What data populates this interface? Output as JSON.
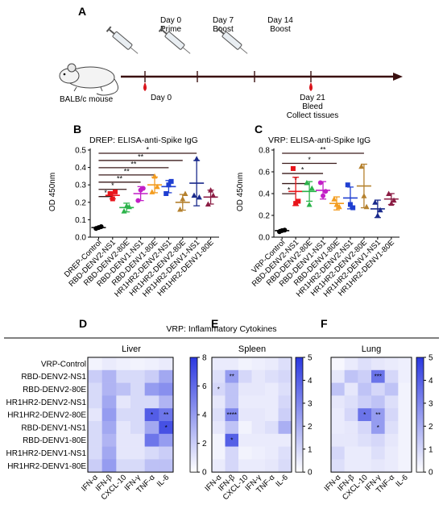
{
  "panel_a": {
    "letter": "A",
    "mouse_label": "BALB/c mouse",
    "events": [
      {
        "key": "d0",
        "top": [
          "Day 0",
          "Prime"
        ],
        "bottom": [
          "Day 0"
        ],
        "syringe": true,
        "blood": true
      },
      {
        "key": "d7",
        "top": [
          "Day 7",
          "Boost"
        ],
        "bottom": [],
        "syringe": true,
        "blood": false
      },
      {
        "key": "d14",
        "top": [
          "Day 14",
          "Boost"
        ],
        "bottom": [],
        "syringe": true,
        "blood": false
      },
      {
        "key": "d21",
        "top": [],
        "bottom": [
          "Day 21",
          "Bleed",
          "Collect tissues"
        ],
        "syringe": false,
        "blood": true
      }
    ]
  },
  "panel_b": {
    "letter": "B",
    "chart_data": {
      "type": "scatter",
      "title": "DREP: ELISA-anti-Spike IgG",
      "ylabel": "OD 450nm",
      "ylim": [
        0,
        0.5
      ],
      "yticks": [
        "0.0",
        "0.1",
        "0.2",
        "0.3",
        "0.4",
        "0.5"
      ],
      "categories": [
        "DREP-Control",
        "RBD-DENV2-NS1",
        "RBD-DENV2-80E",
        "RBD-DENV1-NS1",
        "RBD-DENV1-80E",
        "HR1HR2-DENV2-NS1",
        "HR1HR2-DENV2-80E",
        "HR1HR2-DENV1-NS1",
        "HR1HR2-DENV1-80E"
      ],
      "colors": [
        "#000000",
        "#e8151b",
        "#2bb34a",
        "#c21fc7",
        "#f39c1f",
        "#1f3fd1",
        "#b5812e",
        "#1a2a8c",
        "#8b1d44"
      ],
      "means": [
        0.055,
        0.24,
        0.17,
        0.25,
        0.3,
        0.29,
        0.2,
        0.31,
        0.23
      ],
      "sds": [
        0.005,
        0.02,
        0.025,
        0.04,
        0.045,
        0.035,
        0.045,
        0.13,
        0.04
      ],
      "points": [
        [
          0.05,
          0.055,
          0.06
        ],
        [
          0.25,
          0.22,
          0.26
        ],
        [
          0.15,
          0.18,
          0.175
        ],
        [
          0.21,
          0.27,
          0.28
        ],
        [
          0.26,
          0.35,
          0.29
        ],
        [
          0.25,
          0.3,
          0.32
        ],
        [
          0.16,
          0.22,
          0.25
        ],
        [
          0.24,
          0.45,
          0.23
        ],
        [
          0.19,
          0.27,
          0.24
        ]
      ],
      "brackets": [
        {
          "to": 1,
          "label": "*"
        },
        {
          "to": 2,
          "label": "*"
        },
        {
          "to": 3,
          "label": "**"
        },
        {
          "to": 4,
          "label": "**"
        },
        {
          "to": 5,
          "label": "**"
        },
        {
          "to": 6,
          "label": "**"
        },
        {
          "to": 7,
          "label": "*"
        }
      ]
    }
  },
  "panel_c": {
    "letter": "C",
    "chart_data": {
      "type": "scatter",
      "title": "VRP: ELISA-anti-Spike IgG",
      "ylabel": "OD 450nm",
      "ylim": [
        0,
        0.8
      ],
      "yticks": [
        "0.0",
        "0.2",
        "0.4",
        "0.6",
        "0.8"
      ],
      "categories": [
        "VRP-Control",
        "RBD-DENV2-NS1",
        "RBD-DENV2-80E",
        "RBD-DENV1-NS1",
        "RBD-DENV1-80E",
        "HR1HR2-DENV2-NS1",
        "HR1HR2-DENV2-80E",
        "HR1HR2-DENV1-NS1",
        "HR1HR2-DENV1-80E"
      ],
      "colors": [
        "#000000",
        "#e8151b",
        "#2bb34a",
        "#c21fc7",
        "#f39c1f",
        "#1f3fd1",
        "#b5812e",
        "#1a2a8c",
        "#8b1d44"
      ],
      "means": [
        0.06,
        0.42,
        0.42,
        0.43,
        0.31,
        0.36,
        0.47,
        0.26,
        0.35
      ],
      "sds": [
        0.01,
        0.13,
        0.09,
        0.08,
        0.06,
        0.1,
        0.2,
        0.08,
        0.05
      ],
      "points": [
        [
          0.05,
          0.06,
          0.065
        ],
        [
          0.63,
          0.31,
          0.33
        ],
        [
          0.5,
          0.3,
          0.45
        ],
        [
          0.5,
          0.38,
          0.42
        ],
        [
          0.35,
          0.3,
          0.28
        ],
        [
          0.48,
          0.3,
          0.27
        ],
        [
          0.65,
          0.38,
          0.28
        ],
        [
          0.32,
          0.2,
          0.25
        ],
        [
          0.4,
          0.31,
          0.34
        ]
      ],
      "brackets": [
        {
          "to": 1,
          "label": "*"
        },
        {
          "to": 2,
          "label": "*"
        },
        {
          "to": 3,
          "label": "*"
        },
        {
          "to": 4,
          "label": "*"
        },
        {
          "to": 6,
          "label": "**"
        }
      ]
    }
  },
  "cytokines": {
    "header": "VRP: Inflammatory Cytokines",
    "row_labels": [
      "VRP-Control",
      "RBD-DENV2-NS1",
      "RBD-DENV2-80E",
      "HR1HR2-DENV2-NS1",
      "HR1HR2-DENV2-80E",
      "RBD-DENV1-NS1",
      "RBD-DENV1-80E",
      "HR1HR2-DENV1-NS1",
      "HR1HR2-DENV1-80E"
    ],
    "col_labels": [
      "IFN-α",
      "IFN-β",
      "CXCL-10",
      "IFN-γ",
      "TNF-α",
      "IL-6"
    ],
    "colormap": [
      "#ffffff",
      "#2b38e0"
    ],
    "panels": [
      {
        "letter": "D",
        "title": "Liver",
        "max": 8,
        "ticks": [
          "0",
          "2",
          "4",
          "6",
          "8"
        ],
        "chart_data": {
          "type": "heatmap",
          "values": [
            [
              0.5,
              0.8,
              0.6,
              0.5,
              0.6,
              0.8
            ],
            [
              2.0,
              3.0,
              1.5,
              1.5,
              2.0,
              3.5
            ],
            [
              1.5,
              3.0,
              2.5,
              1.5,
              4.0,
              4.5
            ],
            [
              1.5,
              3.5,
              1.0,
              1.5,
              1.5,
              3.0
            ],
            [
              1.0,
              4.0,
              1.5,
              1.5,
              6.5,
              5.5
            ],
            [
              1.5,
              3.5,
              1.0,
              1.5,
              3.5,
              7.0
            ],
            [
              1.5,
              3.0,
              1.0,
              1.0,
              5.5,
              4.0
            ],
            [
              1.5,
              3.5,
              1.0,
              1.0,
              1.5,
              2.0
            ],
            [
              2.0,
              4.0,
              1.5,
              1.5,
              2.5,
              2.5
            ]
          ]
        },
        "stars": [
          {
            "r": 4,
            "c": 4,
            "t": "*"
          },
          {
            "r": 4,
            "c": 5,
            "t": "**"
          },
          {
            "r": 5,
            "c": 5,
            "t": "*"
          }
        ]
      },
      {
        "letter": "E",
        "title": "Spleen",
        "max": 5,
        "ticks": [
          "0",
          "1",
          "2",
          "3",
          "4",
          "5"
        ],
        "chart_data": {
          "type": "heatmap",
          "values": [
            [
              0.5,
              0.5,
              0.3,
              0.4,
              0.5,
              0.8
            ],
            [
              0.8,
              2.5,
              1.0,
              0.6,
              0.8,
              1.0
            ],
            [
              1.0,
              1.5,
              0.6,
              0.6,
              0.5,
              0.8
            ],
            [
              0.6,
              1.5,
              0.5,
              0.5,
              0.5,
              1.0
            ],
            [
              0.8,
              3.0,
              0.6,
              0.6,
              0.5,
              1.2
            ],
            [
              0.6,
              1.5,
              0.3,
              0.6,
              0.8,
              2.0
            ],
            [
              0.3,
              4.0,
              0.5,
              0.5,
              0.5,
              0.5
            ],
            [
              0.3,
              1.0,
              0.3,
              0.4,
              0.5,
              0.8
            ],
            [
              0.5,
              1.0,
              0.5,
              0.5,
              0.6,
              0.9
            ]
          ]
        },
        "stars": [
          {
            "r": 1,
            "c": 1,
            "t": "**"
          },
          {
            "r": 2,
            "c": 0,
            "t": "*"
          },
          {
            "r": 4,
            "c": 1,
            "t": "****"
          },
          {
            "r": 6,
            "c": 1,
            "t": "*"
          }
        ]
      },
      {
        "letter": "F",
        "title": "Lung",
        "max": 5,
        "ticks": [
          "0",
          "1",
          "2",
          "3",
          "4",
          "5"
        ],
        "chart_data": {
          "type": "heatmap",
          "values": [
            [
              0.2,
              0.5,
              0.8,
              0.6,
              0.5,
              0.4
            ],
            [
              0.6,
              1.5,
              1.2,
              3.5,
              1.0,
              0.4
            ],
            [
              1.5,
              0.6,
              1.5,
              1.0,
              1.5,
              0.3
            ],
            [
              0.6,
              0.8,
              1.2,
              1.5,
              0.8,
              0.3
            ],
            [
              0.5,
              1.0,
              3.5,
              2.5,
              1.0,
              0.3
            ],
            [
              0.5,
              0.6,
              1.0,
              2.5,
              0.8,
              0.3
            ],
            [
              0.6,
              0.6,
              0.8,
              1.0,
              0.6,
              0.3
            ],
            [
              1.0,
              0.5,
              0.5,
              0.8,
              0.5,
              0.3
            ],
            [
              0.8,
              0.5,
              0.5,
              0.6,
              0.5,
              0.3
            ]
          ]
        },
        "stars": [
          {
            "r": 1,
            "c": 3,
            "t": "***"
          },
          {
            "r": 4,
            "c": 2,
            "t": "*"
          },
          {
            "r": 4,
            "c": 3,
            "t": "**"
          },
          {
            "r": 5,
            "c": 3,
            "t": "*"
          }
        ]
      }
    ]
  }
}
